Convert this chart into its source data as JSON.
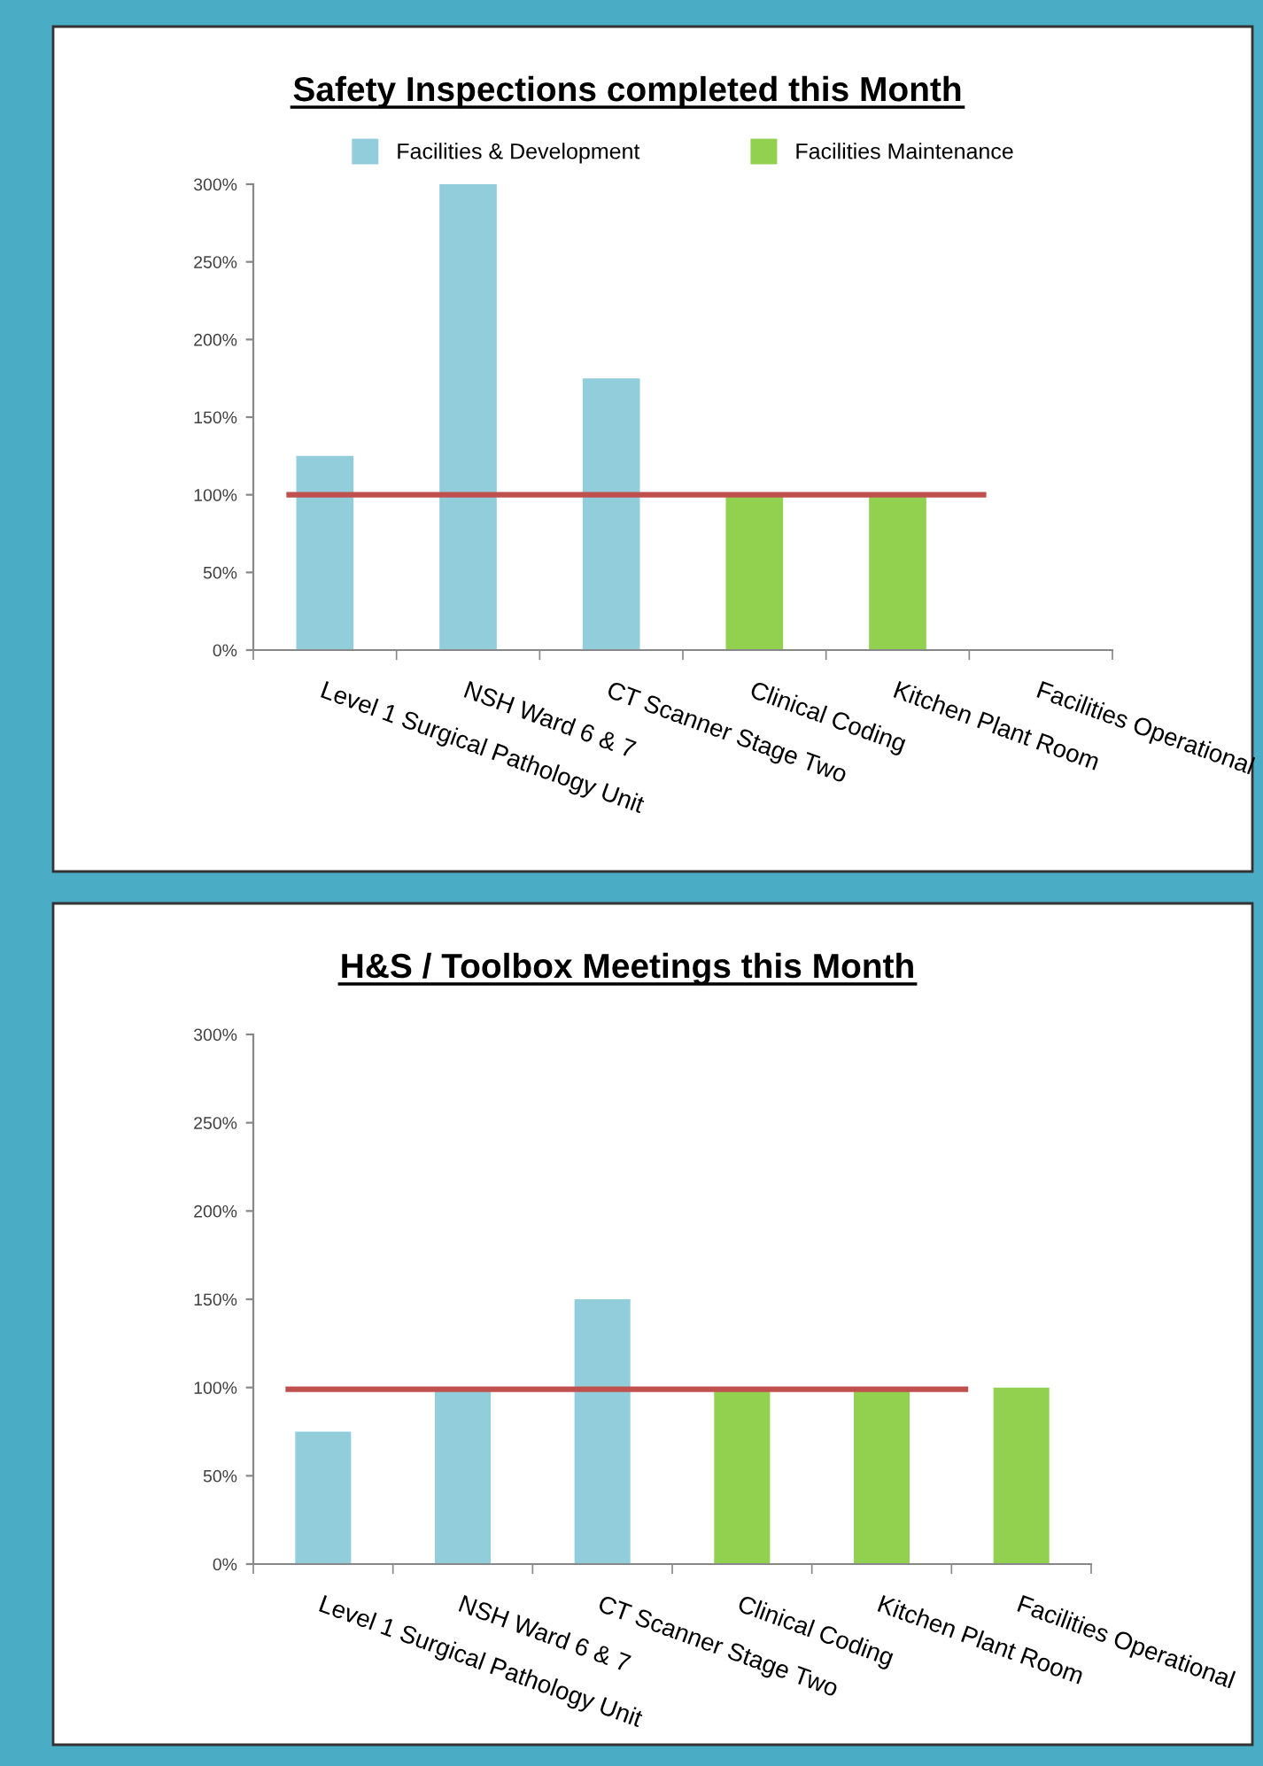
{
  "chart_data": [
    {
      "type": "bar",
      "title": "Safety Inspections completed this Month",
      "categories": [
        "Level 1 Surgical Pathology Unit",
        "NSH Ward 6 & 7",
        "CT Scanner Stage Two",
        "Clinical Coding",
        "Kitchen Plant Room",
        "Facilities Operational"
      ],
      "series": [
        {
          "name": "Facilities & Development",
          "color": "#92cddc",
          "values": [
            125,
            300,
            175,
            null,
            null,
            null
          ]
        },
        {
          "name": "Facilities Maintenance",
          "color": "#92d050",
          "values": [
            null,
            null,
            null,
            100,
            100,
            null
          ]
        }
      ],
      "ylim": [
        0,
        300
      ],
      "yticks": [
        {
          "value": 0,
          "label": "0%"
        },
        {
          "value": 50,
          "label": "50%"
        },
        {
          "value": 100,
          "label": "100%"
        },
        {
          "value": 150,
          "label": "150%"
        },
        {
          "value": 200,
          "label": "200%"
        },
        {
          "value": 250,
          "label": "250%"
        },
        {
          "value": 300,
          "label": "300%"
        }
      ],
      "ref_lines": [
        {
          "axis": "y",
          "value": 100,
          "color": "#c0504d"
        }
      ],
      "legend": "top",
      "grid": false
    },
    {
      "type": "bar",
      "title": "H&S / Toolbox Meetings this Month",
      "categories": [
        "Level 1 Surgical Pathology Unit",
        "NSH Ward 6 & 7",
        "CT Scanner Stage Two",
        "Clinical Coding",
        "Kitchen Plant Room",
        "Facilities Operational"
      ],
      "series": [
        {
          "color": "#92cddc",
          "values": [
            75,
            100,
            150,
            null,
            null,
            null
          ]
        },
        {
          "color": "#92d050",
          "values": [
            null,
            null,
            null,
            100,
            100,
            100
          ]
        }
      ],
      "ylim": [
        0,
        300
      ],
      "yticks": [
        {
          "value": 0,
          "label": "0%"
        },
        {
          "value": 50,
          "label": "50%"
        },
        {
          "value": 100,
          "label": "100%"
        },
        {
          "value": 150,
          "label": "150%"
        },
        {
          "value": 200,
          "label": "200%"
        },
        {
          "value": 250,
          "label": "250%"
        },
        {
          "value": 300,
          "label": "300%"
        }
      ],
      "ref_lines": [
        {
          "axis": "y",
          "value": 99,
          "color": "#c0504d"
        }
      ],
      "grid": false
    }
  ]
}
